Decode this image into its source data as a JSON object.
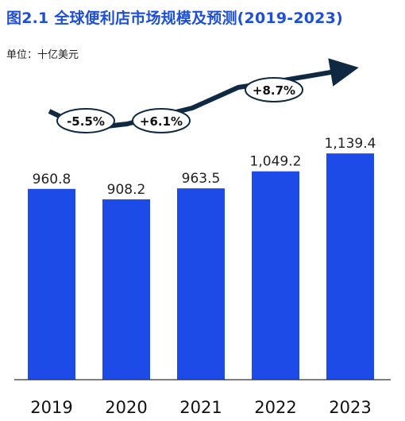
{
  "title": "图2.1 全球便利店市场规模及预测(2019-2023)",
  "unit_label": "单位：十亿美元",
  "colors": {
    "bar": "#1d4be8",
    "title": "#1d4fd8",
    "arrow": "#0f2942",
    "axis": "#333333"
  },
  "chart_data": {
    "type": "bar",
    "categories": [
      "2019",
      "2020",
      "2021",
      "2022",
      "2023"
    ],
    "values": [
      960.8,
      908.2,
      963.5,
      1049.2,
      1139.4
    ],
    "value_labels": [
      "960.8",
      "908.2",
      "963.5",
      "1,049.2",
      "1,139.4"
    ],
    "ylim": [
      0,
      1200
    ],
    "grid": false,
    "growth_annotations": [
      "-5.5%",
      "+6.1%",
      "+8.7%"
    ]
  }
}
